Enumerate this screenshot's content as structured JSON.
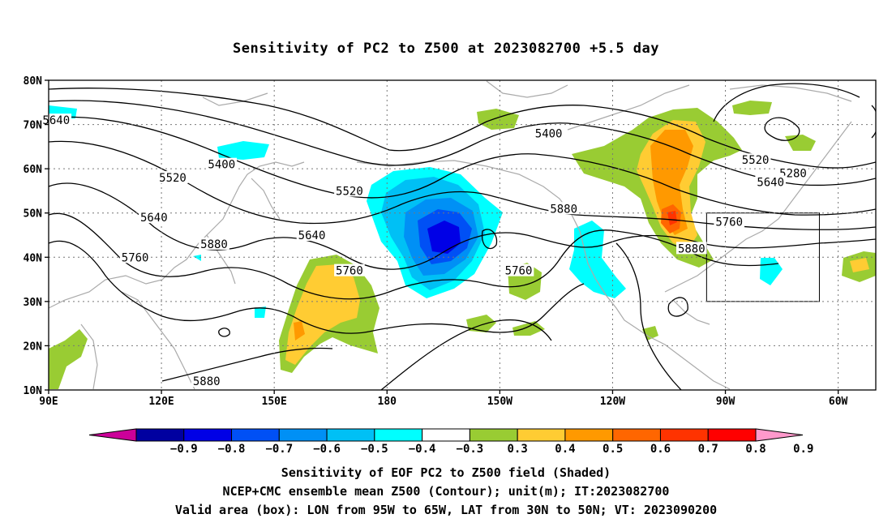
{
  "title": "Sensitivity of PC2 to Z500 at 2023082700 +5.5 day",
  "map": {
    "lat_labels": [
      "80N",
      "70N",
      "60N",
      "50N",
      "40N",
      "30N",
      "20N",
      "10N"
    ],
    "lon_labels": [
      "90E",
      "120E",
      "150E",
      "180",
      "150W",
      "120W",
      "90W",
      "60W"
    ],
    "lon_range": [
      90,
      310
    ],
    "lat_range": [
      10,
      80
    ],
    "valid_box": {
      "lon": [
        265,
        295
      ],
      "lat": [
        30,
        50
      ]
    },
    "contour_labels": [
      {
        "text": "5400",
        "lon": 223,
        "lat": 68
      },
      {
        "text": "5400",
        "lon": 136,
        "lat": 61
      },
      {
        "text": "5280",
        "lon": 288,
        "lat": 59
      },
      {
        "text": "5520",
        "lon": 278,
        "lat": 62
      },
      {
        "text": "5520",
        "lon": 170,
        "lat": 55
      },
      {
        "text": "5520",
        "lon": 123,
        "lat": 58
      },
      {
        "text": "5640",
        "lon": 282,
        "lat": 57
      },
      {
        "text": "5640",
        "lon": 92,
        "lat": 71
      },
      {
        "text": "5640",
        "lon": 118,
        "lat": 49
      },
      {
        "text": "5640",
        "lon": 160,
        "lat": 45
      },
      {
        "text": "5760",
        "lon": 271,
        "lat": 48
      },
      {
        "text": "5760",
        "lon": 113,
        "lat": 40
      },
      {
        "text": "5760",
        "lon": 170,
        "lat": 37
      },
      {
        "text": "5760",
        "lon": 215,
        "lat": 37
      },
      {
        "text": "5880",
        "lon": 227,
        "lat": 51
      },
      {
        "text": "5880",
        "lon": 261,
        "lat": 42
      },
      {
        "text": "5880",
        "lon": 134,
        "lat": 43
      },
      {
        "text": "5880",
        "lon": 132,
        "lat": 12
      }
    ]
  },
  "colorbar": {
    "labels": [
      "−0.9",
      "−0.8",
      "−0.7",
      "−0.6",
      "−0.5",
      "−0.4",
      "−0.3",
      "0.3",
      "0.4",
      "0.5",
      "0.6",
      "0.7",
      "0.8",
      "0.9"
    ],
    "colors": [
      "#0000a0",
      "#0000e6",
      "#0050f5",
      "#0090f5",
      "#00c0f5",
      "#00ffff",
      "#ffffff",
      "#99cc33",
      "#ffcc33",
      "#ff9900",
      "#ff6600",
      "#ff3300",
      "#ff0000"
    ],
    "low_end_color": "#cc0099",
    "high_end_color": "#ff99cc"
  },
  "caption": {
    "line1": "Sensitivity of EOF PC2 to Z500 field (Shaded)",
    "line2": "NCEP+CMC ensemble mean Z500 (Contour); unit(m); IT:2023082700",
    "line3": "Valid area (box): LON from 95W to 65W, LAT from 30N to 50N; VT: 2023090200"
  }
}
